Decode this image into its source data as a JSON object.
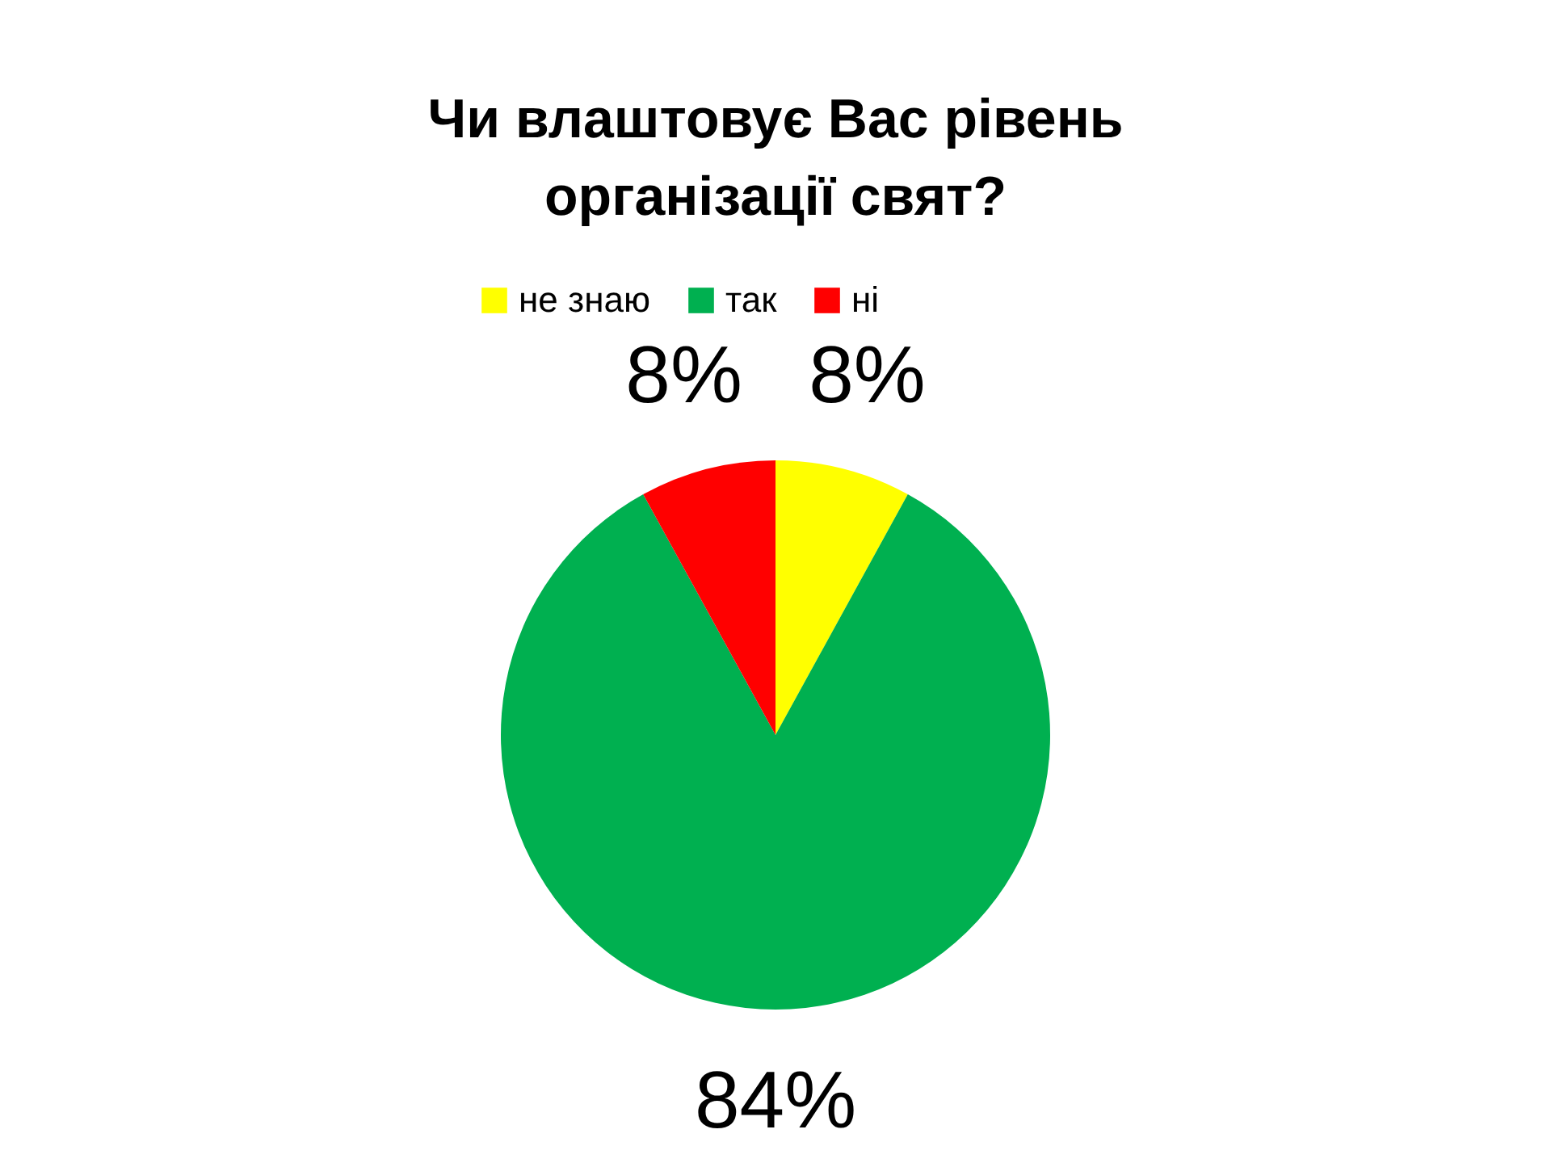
{
  "chart_data": {
    "type": "pie",
    "title": "Чи влаштовує Вас рівень\nорганізації свят?",
    "categories": [
      "не знаю",
      "так",
      "ні"
    ],
    "values": [
      8,
      84,
      8
    ],
    "colors": [
      "#ffff00",
      "#00b050",
      "#ff0000"
    ],
    "value_labels": [
      "8%",
      "84%",
      "8%"
    ],
    "legend": "top"
  }
}
